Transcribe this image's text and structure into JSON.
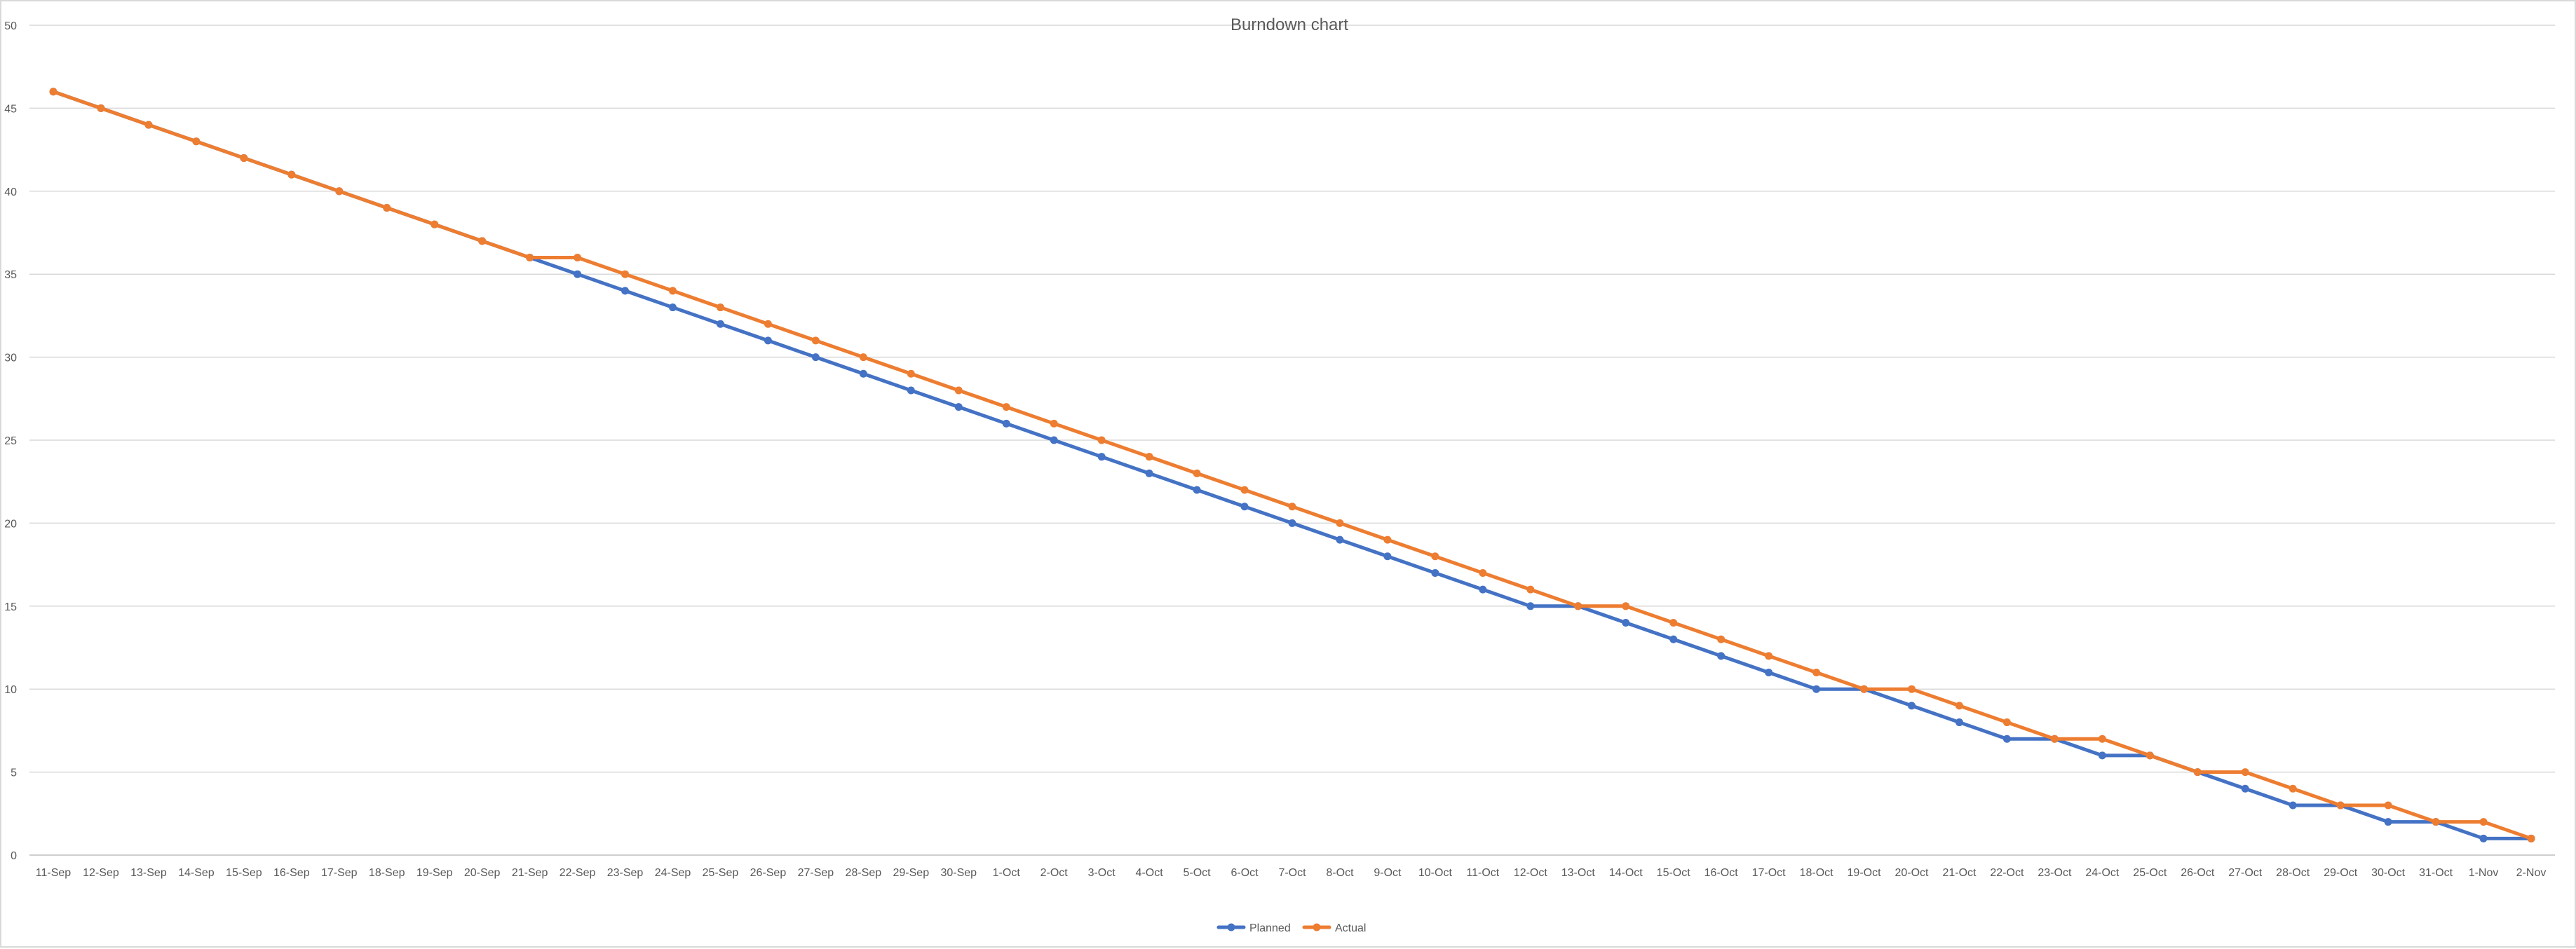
{
  "chart_data": {
    "type": "line",
    "title": "Burndown chart",
    "xlabel": "",
    "ylabel": "",
    "ylim": [
      0,
      50
    ],
    "yticks": [
      0,
      5,
      10,
      15,
      20,
      25,
      30,
      35,
      40,
      45,
      50
    ],
    "grid": true,
    "legend_position": "bottom",
    "categories": [
      "11-Sep",
      "12-Sep",
      "13-Sep",
      "14-Sep",
      "15-Sep",
      "16-Sep",
      "17-Sep",
      "18-Sep",
      "19-Sep",
      "20-Sep",
      "21-Sep",
      "22-Sep",
      "23-Sep",
      "24-Sep",
      "25-Sep",
      "26-Sep",
      "27-Sep",
      "28-Sep",
      "29-Sep",
      "30-Sep",
      "1-Oct",
      "2-Oct",
      "3-Oct",
      "4-Oct",
      "5-Oct",
      "6-Oct",
      "7-Oct",
      "8-Oct",
      "9-Oct",
      "10-Oct",
      "11-Oct",
      "12-Oct",
      "13-Oct",
      "14-Oct",
      "15-Oct",
      "16-Oct",
      "17-Oct",
      "18-Oct",
      "19-Oct",
      "20-Oct",
      "21-Oct",
      "22-Oct",
      "23-Oct",
      "24-Oct",
      "25-Oct",
      "26-Oct",
      "27-Oct",
      "28-Oct",
      "29-Oct",
      "30-Oct",
      "31-Oct",
      "1-Nov",
      "2-Nov"
    ],
    "series": [
      {
        "name": "Planned",
        "color": "#4472c4",
        "values": [
          46,
          45,
          44,
          43,
          42,
          41,
          40,
          39,
          38,
          37,
          36,
          35,
          34,
          33,
          32,
          31,
          30,
          29,
          28,
          27,
          26,
          25,
          24,
          23,
          22,
          21,
          20,
          19,
          18,
          17,
          16,
          15,
          15,
          14,
          13,
          12,
          11,
          10,
          10,
          9,
          8,
          7,
          7,
          6,
          6,
          5,
          4,
          3,
          3,
          2,
          2,
          1,
          1
        ]
      },
      {
        "name": "Actual",
        "color": "#ed7d31",
        "values": [
          46,
          45,
          44,
          43,
          42,
          41,
          40,
          39,
          38,
          37,
          36,
          36,
          35,
          34,
          33,
          32,
          31,
          30,
          29,
          28,
          27,
          26,
          25,
          24,
          23,
          22,
          21,
          20,
          19,
          18,
          17,
          16,
          15,
          15,
          14,
          13,
          12,
          11,
          10,
          10,
          9,
          8,
          7,
          7,
          6,
          5,
          5,
          4,
          3,
          3,
          2,
          2,
          1
        ]
      }
    ]
  }
}
